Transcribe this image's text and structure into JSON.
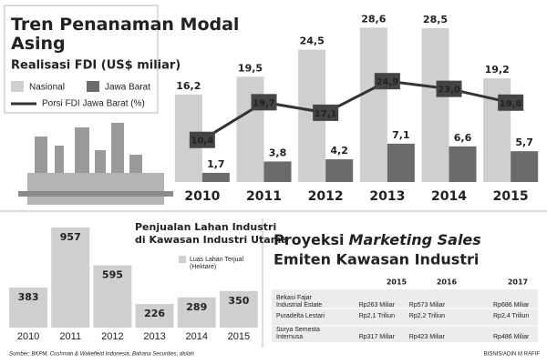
{
  "chart_data": [
    {
      "type": "bar-line",
      "title": "Tren Penanaman Modal Asing",
      "subtitle": "Realisasi FDI (US$ miliar)",
      "categories": [
        "2010",
        "2011",
        "2012",
        "2013",
        "2014",
        "2015"
      ],
      "ylim": [
        0,
        30
      ],
      "y2lim": [
        0,
        40
      ],
      "series": [
        {
          "name": "Nasional",
          "type": "bar",
          "color": "#cfcfcf",
          "values": [
            16.2,
            19.5,
            24.5,
            28.6,
            28.5,
            19.2
          ],
          "value_labels": [
            "16,2",
            "19,5",
            "24,5",
            "28,6",
            "28,5",
            "19,2"
          ]
        },
        {
          "name": "Jawa Barat",
          "type": "bar",
          "color": "#6b6b6b",
          "values": [
            1.7,
            3.8,
            4.2,
            7.1,
            6.6,
            5.7
          ],
          "value_labels": [
            "1,7",
            "3,8",
            "4,2",
            "7,1",
            "6,6",
            "5,7"
          ]
        },
        {
          "name": "Porsi FDI Jawa Barat (%)",
          "type": "line",
          "axis": "y2",
          "color": "#333333",
          "values": [
            10.4,
            19.7,
            17.1,
            24.9,
            23.0,
            19.6
          ],
          "value_labels": [
            "10,4",
            "19,7",
            "17,1",
            "24,9",
            "23,0",
            "19,6"
          ]
        }
      ]
    },
    {
      "type": "bar",
      "title": "Penjualan Lahan Industri di Kawasan Industri Utama",
      "categories": [
        "2010",
        "2011",
        "2012",
        "2013",
        "2014",
        "2015"
      ],
      "series": [
        {
          "name": "Luas Lahan Terjual (Hektare)",
          "color": "#cfcfcf",
          "values": [
            383,
            957,
            595,
            226,
            289,
            350
          ]
        }
      ],
      "ylim": [
        0,
        1000
      ]
    }
  ],
  "table": {
    "title_start": "Proyeksi",
    "title_italic": "Marketing Sales",
    "title_end": "Emiten Kawasan Industri",
    "columns": [
      "2015",
      "2016",
      "2017"
    ],
    "rows": [
      {
        "name": "Bekasi Fajar Industrial Estate",
        "values": [
          "Rp263 Miliar",
          "Rp573 Miliar",
          "Rp686 Miliar"
        ]
      },
      {
        "name": "Puradelta Lestari",
        "values": [
          "Rp2,1 Triliun",
          "Rp2,2 Triliun",
          "Rp2,4 Triliun"
        ]
      },
      {
        "name": "Surya Semesta Internusa",
        "values": [
          "Rp317 Miliar",
          "Rp423 Miliar",
          "Rp486 Miliar"
        ]
      }
    ]
  },
  "source": "Sumber: BKPM, Cushman & Wakefield Indonesia, Bahana Securities, diolah",
  "credit": "BISNIS/ADIN M RAFIF"
}
